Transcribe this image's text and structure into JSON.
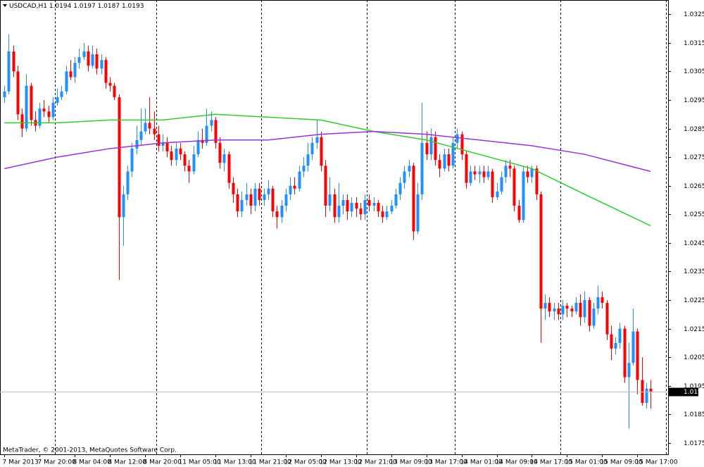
{
  "chart_data": {
    "type": "candlestick",
    "symbol": "USDCAD,H1",
    "copyright": "MetaTrader, © 2001-2013, MetaQuotes Software Corp.",
    "up_color": "#1e90ff",
    "down_color": "#ff0000",
    "open": [
      1.0296,
      1.0298,
      1.0312,
      1.0305,
      1.029,
      1.0285,
      1.03,
      1.0288,
      1.0286,
      1.0292,
      1.0291,
      1.0289,
      1.0294,
      1.0296,
      1.0298,
      1.0305,
      1.0303,
      1.0308,
      1.031,
      1.0312,
      1.0307,
      1.0311,
      1.0306,
      1.0309,
      1.0301,
      1.03,
      1.0296,
      1.0254,
      1.0262,
      1.027,
      1.0278,
      1.0281,
      1.0284,
      1.0287,
      1.0285,
      1.0283,
      1.0279,
      1.028,
      1.0277,
      1.0274,
      1.0278,
      1.0276,
      1.0272,
      1.027,
      1.0276,
      1.0281,
      1.028,
      1.0286,
      1.0288,
      1.028,
      1.0273,
      1.0276,
      1.0266,
      1.0262,
      1.0256,
      1.026,
      1.0262,
      1.0258,
      1.0264,
      1.026,
      1.0262,
      1.0264,
      1.0256,
      1.0254,
      1.0258,
      1.0262,
      1.0265,
      1.0264,
      1.027,
      1.0272,
      1.0276,
      1.028,
      1.0282,
      1.0272,
      1.0258,
      1.0262,
      1.0254,
      1.0258,
      1.026,
      1.0256,
      1.0259,
      1.0257,
      1.0255,
      1.026,
      1.0258,
      1.0259,
      1.0256,
      1.0254,
      1.0256,
      1.0258,
      1.0262,
      1.0266,
      1.027,
      1.0272,
      1.0249,
      1.0262,
      1.028,
      1.0276,
      1.0282,
      1.0274,
      1.0271,
      1.0276,
      1.0272,
      1.028,
      1.0283,
      1.0276,
      1.0266,
      1.027,
      1.0269,
      1.027,
      1.0268,
      1.027,
      1.0261,
      1.0263,
      1.0268,
      1.0272,
      1.0271,
      1.0258,
      1.0253,
      1.027,
      1.0268,
      1.0271,
      1.0262,
      1.0222,
      1.0224,
      1.0221,
      1.0222,
      1.022,
      1.0223,
      1.0222,
      1.0221,
      1.0224,
      1.0219,
      1.0225,
      1.0216,
      1.0222,
      1.0226,
      1.0224,
      1.0213,
      1.0208,
      1.021,
      1.0215,
      1.0198,
      1.0203,
      1.0214,
      1.0197,
      1.0189,
      1.0194
    ],
    "high": [
      1.03,
      1.0318,
      1.0314,
      1.0307,
      1.0292,
      1.0304,
      1.0301,
      1.0291,
      1.0294,
      1.0295,
      1.0293,
      1.0296,
      1.0299,
      1.03,
      1.0307,
      1.0309,
      1.031,
      1.0313,
      1.0315,
      1.0314,
      1.0314,
      1.0313,
      1.0311,
      1.031,
      1.0303,
      1.0301,
      1.0297,
      1.0265,
      1.0272,
      1.028,
      1.0286,
      1.0292,
      1.0292,
      1.0296,
      1.0291,
      1.0286,
      1.0283,
      1.0282,
      1.0279,
      1.028,
      1.028,
      1.0277,
      1.0274,
      1.0279,
      1.0284,
      1.0285,
      1.0292,
      1.0291,
      1.0289,
      1.0282,
      1.0278,
      1.0277,
      1.0268,
      1.0264,
      1.0263,
      1.0266,
      1.0264,
      1.0266,
      1.0266,
      1.0264,
      1.0267,
      1.0265,
      1.0258,
      1.026,
      1.0264,
      1.0268,
      1.0268,
      1.0272,
      1.0275,
      1.028,
      1.0282,
      1.0288,
      1.0284,
      1.0274,
      1.0268,
      1.0264,
      1.0266,
      1.0262,
      1.0262,
      1.0261,
      1.0261,
      1.0259,
      1.0262,
      1.0262,
      1.0261,
      1.026,
      1.0258,
      1.0258,
      1.026,
      1.0264,
      1.0268,
      1.0272,
      1.0274,
      1.0273,
      1.0266,
      1.0294,
      1.0284,
      1.0285,
      1.0284,
      1.0276,
      1.0278,
      1.0278,
      1.0282,
      1.0285,
      1.0284,
      1.0277,
      1.0272,
      1.0272,
      1.0272,
      1.0272,
      1.0272,
      1.0271,
      1.0266,
      1.027,
      1.0274,
      1.0274,
      1.0272,
      1.026,
      1.0272,
      1.0272,
      1.0272,
      1.0272,
      1.0263,
      1.0227,
      1.0226,
      1.0224,
      1.0224,
      1.0225,
      1.0224,
      1.0223,
      1.0226,
      1.0227,
      1.0228,
      1.0226,
      1.0224,
      1.023,
      1.0228,
      1.0225,
      1.0216,
      1.0212,
      1.0217,
      1.0216,
      1.021,
      1.0222,
      1.0215,
      1.0205,
      1.0196,
      1.0197
    ],
    "low": [
      1.0294,
      1.0297,
      1.0303,
      1.0288,
      1.0282,
      1.0284,
      1.0286,
      1.0284,
      1.0285,
      1.0289,
      1.0287,
      1.0288,
      1.0293,
      1.0295,
      1.0297,
      1.0302,
      1.0301,
      1.0306,
      1.0309,
      1.0305,
      1.0306,
      1.0304,
      1.0304,
      1.0299,
      1.0298,
      1.0295,
      1.0232,
      1.0244,
      1.026,
      1.0268,
      1.0276,
      1.0279,
      1.0283,
      1.0283,
      1.0281,
      1.0277,
      1.0277,
      1.0275,
      1.0272,
      1.0272,
      1.0274,
      1.027,
      1.0266,
      1.0269,
      1.0275,
      1.0278,
      1.0279,
      1.0284,
      1.0278,
      1.0271,
      1.027,
      1.0264,
      1.0259,
      1.0254,
      1.0254,
      1.0258,
      1.0255,
      1.0256,
      1.0258,
      1.0258,
      1.026,
      1.0254,
      1.025,
      1.0252,
      1.0256,
      1.026,
      1.0262,
      1.0263,
      1.0268,
      1.027,
      1.0274,
      1.0278,
      1.027,
      1.0254,
      1.0256,
      1.0252,
      1.0252,
      1.0255,
      1.0253,
      1.0254,
      1.0254,
      1.0253,
      1.0253,
      1.0256,
      1.0256,
      1.0254,
      1.0252,
      1.0253,
      1.0255,
      1.0257,
      1.026,
      1.0264,
      1.0268,
      1.0246,
      1.0248,
      1.026,
      1.0274,
      1.0274,
      1.0272,
      1.0268,
      1.027,
      1.027,
      1.0271,
      1.0278,
      1.0274,
      1.0264,
      1.0265,
      1.0267,
      1.0266,
      1.0266,
      1.0267,
      1.0259,
      1.026,
      1.0262,
      1.0266,
      1.0268,
      1.0256,
      1.0252,
      1.0252,
      1.0266,
      1.0266,
      1.026,
      1.021,
      1.0218,
      1.0219,
      1.0218,
      1.0218,
      1.0218,
      1.0219,
      1.0219,
      1.022,
      1.0216,
      1.0217,
      1.0214,
      1.0215,
      1.022,
      1.0222,
      1.0211,
      1.0204,
      1.0206,
      1.0208,
      1.0196,
      1.018,
      1.0202,
      1.0192,
      1.0188,
      1.0187,
      1.0187
    ],
    "close": [
      1.0298,
      1.0312,
      1.0305,
      1.029,
      1.0285,
      1.03,
      1.0288,
      1.0286,
      1.0292,
      1.0291,
      1.0289,
      1.0294,
      1.0296,
      1.0298,
      1.0305,
      1.0303,
      1.0308,
      1.031,
      1.0312,
      1.0307,
      1.0311,
      1.0306,
      1.0309,
      1.0301,
      1.03,
      1.0296,
      1.0254,
      1.0262,
      1.027,
      1.0278,
      1.0281,
      1.0284,
      1.0287,
      1.0285,
      1.0283,
      1.0279,
      1.028,
      1.0277,
      1.0274,
      1.0278,
      1.0276,
      1.0272,
      1.027,
      1.0276,
      1.0281,
      1.028,
      1.0286,
      1.0288,
      1.028,
      1.0273,
      1.0276,
      1.0266,
      1.0262,
      1.0256,
      1.026,
      1.0262,
      1.0258,
      1.0264,
      1.026,
      1.0262,
      1.0264,
      1.0256,
      1.0254,
      1.0258,
      1.0262,
      1.0265,
      1.0264,
      1.027,
      1.0272,
      1.0276,
      1.028,
      1.0282,
      1.0272,
      1.0258,
      1.0262,
      1.0254,
      1.0258,
      1.026,
      1.0256,
      1.0259,
      1.0257,
      1.0255,
      1.026,
      1.0258,
      1.0259,
      1.0256,
      1.0254,
      1.0256,
      1.0258,
      1.0262,
      1.0266,
      1.027,
      1.0272,
      1.0249,
      1.0262,
      1.028,
      1.0276,
      1.0282,
      1.0274,
      1.0271,
      1.0276,
      1.0272,
      1.028,
      1.0283,
      1.0276,
      1.0266,
      1.027,
      1.0269,
      1.027,
      1.0268,
      1.027,
      1.0261,
      1.0263,
      1.0268,
      1.0272,
      1.0271,
      1.0258,
      1.0253,
      1.027,
      1.0268,
      1.0271,
      1.0262,
      1.0222,
      1.0224,
      1.0221,
      1.0222,
      1.022,
      1.0223,
      1.0222,
      1.0221,
      1.0224,
      1.0219,
      1.0225,
      1.0216,
      1.0222,
      1.0226,
      1.0224,
      1.0213,
      1.0208,
      1.021,
      1.0215,
      1.0198,
      1.0203,
      1.0214,
      1.0197,
      1.0189,
      1.0194,
      1.0193
    ],
    "ma": [
      {
        "color": "#2ecc2e",
        "x": [
          0,
          12,
          24,
          36,
          48,
          60,
          72,
          84,
          96,
          108,
          120,
          132,
          147
        ],
        "values": [
          1.0287,
          1.0287,
          1.0288,
          1.0288,
          1.029,
          1.0289,
          1.0288,
          1.0284,
          1.0281,
          1.0276,
          1.0271,
          1.0262,
          1.0251
        ]
      },
      {
        "color": "#9b30d9",
        "x": [
          0,
          12,
          24,
          36,
          48,
          60,
          72,
          84,
          96,
          108,
          120,
          132,
          147
        ],
        "values": [
          1.0271,
          1.0275,
          1.0278,
          1.028,
          1.0281,
          1.0281,
          1.0283,
          1.0284,
          1.0283,
          1.0281,
          1.0279,
          1.0276,
          1.027
        ]
      }
    ],
    "xlim": [
      -1,
      151
    ],
    "ylim": [
      1.0171,
      1.033
    ],
    "yticks": [
      1.0325,
      1.0315,
      1.0305,
      1.0295,
      1.0285,
      1.0275,
      1.0265,
      1.0255,
      1.0245,
      1.0235,
      1.0225,
      1.0215,
      1.0205,
      1.0195,
      1.0185,
      1.0175
    ],
    "xticks": [
      {
        "value": 0,
        "label": "7 Mar 2013"
      },
      {
        "value": 8,
        "label": "7 Mar 20:00"
      },
      {
        "value": 16,
        "label": "8 Mar 04:00"
      },
      {
        "value": 24,
        "label": "8 Mar 12:00"
      },
      {
        "value": 32,
        "label": "8 Mar 20:00"
      },
      {
        "value": 40,
        "label": "11 Mar 05:00"
      },
      {
        "value": 48,
        "label": "11 Mar 13:00"
      },
      {
        "value": 56,
        "label": "11 Mar 21:00"
      },
      {
        "value": 64,
        "label": "12 Mar 05:00"
      },
      {
        "value": 72,
        "label": "12 Mar 13:00"
      },
      {
        "value": 80,
        "label": "12 Mar 21:00"
      },
      {
        "value": 88,
        "label": "13 Mar 09:00"
      },
      {
        "value": 96,
        "label": "13 Mar 17:00"
      },
      {
        "value": 104,
        "label": "14 Mar 01:00"
      },
      {
        "value": 112,
        "label": "14 Mar 09:00"
      },
      {
        "value": 120,
        "label": "14 Mar 17:00"
      },
      {
        "value": 128,
        "label": "15 Mar 01:00"
      },
      {
        "value": 136,
        "label": "15 Mar 09:00"
      },
      {
        "value": 144,
        "label": "15 Mar 17:00"
      }
    ],
    "separators": [
      11.5,
      34.5,
      58.5,
      82.5,
      102.5,
      126.5,
      150.5
    ]
  }
}
